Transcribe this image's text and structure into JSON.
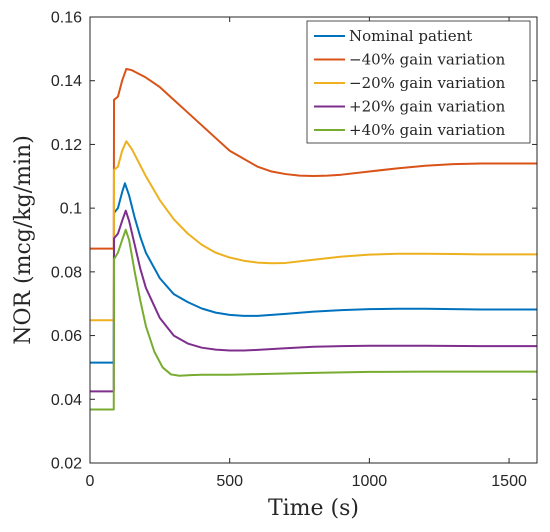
{
  "chart_data": {
    "type": "line",
    "xlabel": "Time (s)",
    "ylabel": "NOR (mcg/kg/min)",
    "xlim": [
      0,
      1600
    ],
    "ylim": [
      0.02,
      0.16
    ],
    "xticks": [
      0,
      500,
      1000,
      1500
    ],
    "yticks": [
      0.02,
      0.04,
      0.06,
      0.08,
      0.1,
      0.12,
      0.14,
      0.16
    ],
    "xtick_labels": [
      "0",
      "500",
      "1000",
      "1500"
    ],
    "ytick_labels": [
      "0.02",
      "0.04",
      "0.06",
      "0.08",
      "0.1",
      "0.12",
      "0.14",
      "0.16"
    ],
    "grid": false,
    "legend_position": "top-right",
    "series": [
      {
        "name": "Nominal patient",
        "color": "#0072BD",
        "points": [
          [
            0,
            0.0515
          ],
          [
            85,
            0.0515
          ],
          [
            86,
            0.0985
          ],
          [
            100,
            0.1
          ],
          [
            115,
            0.105
          ],
          [
            125,
            0.1078
          ],
          [
            140,
            0.104
          ],
          [
            160,
            0.097
          ],
          [
            180,
            0.091
          ],
          [
            200,
            0.086
          ],
          [
            250,
            0.078
          ],
          [
            300,
            0.073
          ],
          [
            350,
            0.0705
          ],
          [
            400,
            0.0685
          ],
          [
            450,
            0.0672
          ],
          [
            500,
            0.0665
          ],
          [
            550,
            0.0662
          ],
          [
            600,
            0.0662
          ],
          [
            700,
            0.0668
          ],
          [
            800,
            0.0675
          ],
          [
            900,
            0.068
          ],
          [
            1000,
            0.0683
          ],
          [
            1100,
            0.0684
          ],
          [
            1200,
            0.0684
          ],
          [
            1300,
            0.0683
          ],
          [
            1400,
            0.0682
          ],
          [
            1500,
            0.0682
          ],
          [
            1600,
            0.0682
          ]
        ]
      },
      {
        "name": "−40% gain variation",
        "color": "#D95319",
        "points": [
          [
            0,
            0.0873
          ],
          [
            85,
            0.0873
          ],
          [
            86,
            0.134
          ],
          [
            100,
            0.135
          ],
          [
            115,
            0.14
          ],
          [
            130,
            0.1437
          ],
          [
            150,
            0.1433
          ],
          [
            200,
            0.141
          ],
          [
            250,
            0.138
          ],
          [
            300,
            0.134
          ],
          [
            350,
            0.13
          ],
          [
            400,
            0.126
          ],
          [
            450,
            0.122
          ],
          [
            500,
            0.118
          ],
          [
            550,
            0.1155
          ],
          [
            600,
            0.113
          ],
          [
            650,
            0.1115
          ],
          [
            700,
            0.1107
          ],
          [
            750,
            0.1102
          ],
          [
            800,
            0.1101
          ],
          [
            850,
            0.1102
          ],
          [
            900,
            0.1105
          ],
          [
            1000,
            0.1115
          ],
          [
            1100,
            0.1125
          ],
          [
            1200,
            0.1133
          ],
          [
            1300,
            0.1138
          ],
          [
            1400,
            0.114
          ],
          [
            1500,
            0.114
          ],
          [
            1600,
            0.114
          ]
        ]
      },
      {
        "name": "−20% gain variation",
        "color": "#EDB120",
        "points": [
          [
            0,
            0.0648
          ],
          [
            85,
            0.0648
          ],
          [
            86,
            0.112
          ],
          [
            100,
            0.113
          ],
          [
            115,
            0.118
          ],
          [
            130,
            0.121
          ],
          [
            150,
            0.1185
          ],
          [
            200,
            0.11
          ],
          [
            250,
            0.1025
          ],
          [
            300,
            0.0965
          ],
          [
            350,
            0.092
          ],
          [
            400,
            0.0885
          ],
          [
            450,
            0.086
          ],
          [
            500,
            0.0845
          ],
          [
            550,
            0.0835
          ],
          [
            600,
            0.0829
          ],
          [
            650,
            0.0827
          ],
          [
            700,
            0.0828
          ],
          [
            800,
            0.0838
          ],
          [
            900,
            0.0848
          ],
          [
            1000,
            0.0854
          ],
          [
            1100,
            0.0857
          ],
          [
            1200,
            0.0857
          ],
          [
            1300,
            0.0856
          ],
          [
            1400,
            0.0855
          ],
          [
            1500,
            0.0855
          ],
          [
            1600,
            0.0855
          ]
        ]
      },
      {
        "name": "+20% gain variation",
        "color": "#7E2F8E",
        "points": [
          [
            0,
            0.0425
          ],
          [
            85,
            0.0425
          ],
          [
            86,
            0.0905
          ],
          [
            100,
            0.092
          ],
          [
            115,
            0.096
          ],
          [
            128,
            0.0992
          ],
          [
            140,
            0.096
          ],
          [
            160,
            0.0885
          ],
          [
            180,
            0.081
          ],
          [
            200,
            0.075
          ],
          [
            250,
            0.0655
          ],
          [
            300,
            0.06
          ],
          [
            350,
            0.0575
          ],
          [
            400,
            0.0562
          ],
          [
            450,
            0.0556
          ],
          [
            500,
            0.0553
          ],
          [
            550,
            0.0553
          ],
          [
            600,
            0.0555
          ],
          [
            700,
            0.056
          ],
          [
            800,
            0.0565
          ],
          [
            900,
            0.0567
          ],
          [
            1000,
            0.0568
          ],
          [
            1200,
            0.0568
          ],
          [
            1400,
            0.0567
          ],
          [
            1600,
            0.0567
          ]
        ]
      },
      {
        "name": "+40% gain variation",
        "color": "#77AC30",
        "points": [
          [
            0,
            0.0368
          ],
          [
            85,
            0.0368
          ],
          [
            86,
            0.084
          ],
          [
            100,
            0.086
          ],
          [
            115,
            0.09
          ],
          [
            128,
            0.0932
          ],
          [
            140,
            0.09
          ],
          [
            160,
            0.08
          ],
          [
            180,
            0.071
          ],
          [
            200,
            0.063
          ],
          [
            230,
            0.055
          ],
          [
            260,
            0.05
          ],
          [
            290,
            0.0478
          ],
          [
            320,
            0.0474
          ],
          [
            360,
            0.0476
          ],
          [
            400,
            0.0477
          ],
          [
            500,
            0.0477
          ],
          [
            600,
            0.0479
          ],
          [
            800,
            0.0483
          ],
          [
            1000,
            0.0486
          ],
          [
            1200,
            0.0487
          ],
          [
            1400,
            0.0487
          ],
          [
            1600,
            0.0487
          ]
        ]
      }
    ]
  }
}
